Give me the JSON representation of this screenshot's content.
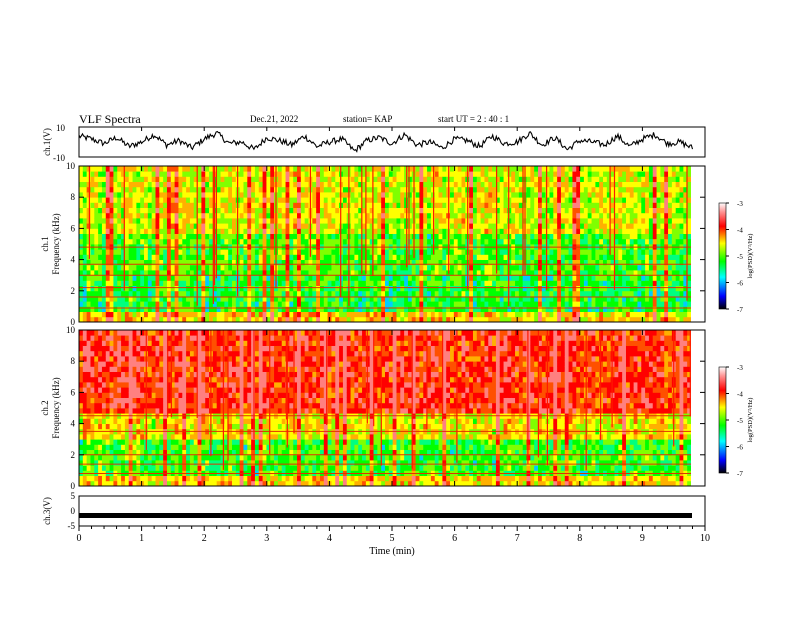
{
  "header": {
    "title": "VLF Spectra",
    "date": "Dec.21, 2022",
    "station": "station= KAP",
    "start": "start UT =  2 : 40 : 1"
  },
  "chart_data": [
    {
      "type": "line",
      "panel": "ch1-waveform",
      "ylabel": "ch.1(V)",
      "ylim": [
        -10,
        10
      ],
      "yticks": [
        "10",
        "-10"
      ],
      "xlim": [
        0,
        9.8
      ],
      "description_only_from_pixels": true,
      "y": [
        4,
        2,
        -1,
        3,
        -3,
        0,
        5,
        -2,
        1,
        -4,
        2,
        6,
        -1,
        0,
        -5,
        3,
        1,
        -2,
        4,
        -3,
        0,
        2,
        -6,
        1,
        3,
        -1,
        5,
        -2,
        0,
        -4,
        2,
        1,
        -3,
        4,
        -1,
        0,
        6,
        -2,
        3,
        -5,
        1,
        0,
        -2,
        4,
        -3,
        2,
        5,
        -1,
        0,
        -4
      ]
    },
    {
      "type": "heatmap",
      "panel": "ch1-spectrogram",
      "ylabel": "ch.1\nFrequency (kHz)",
      "ylabel_lines": [
        "ch.1",
        "Frequency (kHz)"
      ],
      "ylim": [
        0,
        10
      ],
      "yticks": [
        "0",
        "2",
        "4",
        "6",
        "8",
        "10"
      ],
      "colorbar": {
        "label": "log(PSD)(V²/Hz)",
        "range": [
          -7,
          -3
        ],
        "ticks": [
          "-3",
          "-4",
          "-5",
          "-6",
          "-7"
        ]
      }
    },
    {
      "type": "heatmap",
      "panel": "ch2-spectrogram",
      "ylabel": "ch.2\nFrequency (kHz)",
      "ylabel_lines": [
        "ch.2",
        "Frequency (kHz)"
      ],
      "ylim": [
        0,
        10
      ],
      "yticks": [
        "0",
        "2",
        "4",
        "6",
        "8",
        "10"
      ],
      "colorbar": {
        "label": "log(PSD)(V²/Hz)",
        "range": [
          -7,
          -3
        ],
        "ticks": [
          "-3",
          "-4",
          "-5",
          "-6",
          "-7"
        ]
      }
    },
    {
      "type": "line",
      "panel": "ch3-waveform",
      "ylabel": "ch.3(V)",
      "ylim": [
        -5,
        5
      ],
      "yticks": [
        "5",
        "0",
        "-5"
      ],
      "xlabel": "Time (min)",
      "xlim": [
        0,
        10
      ],
      "xticks": [
        "0",
        "1",
        "2",
        "3",
        "4",
        "5",
        "6",
        "7",
        "8",
        "9",
        "10"
      ],
      "level": -1.5
    }
  ],
  "colors": {
    "axis": "#000000",
    "heat_low": "#000080",
    "heat_mid": "#00ff00",
    "heat_high": "#ff0000"
  }
}
